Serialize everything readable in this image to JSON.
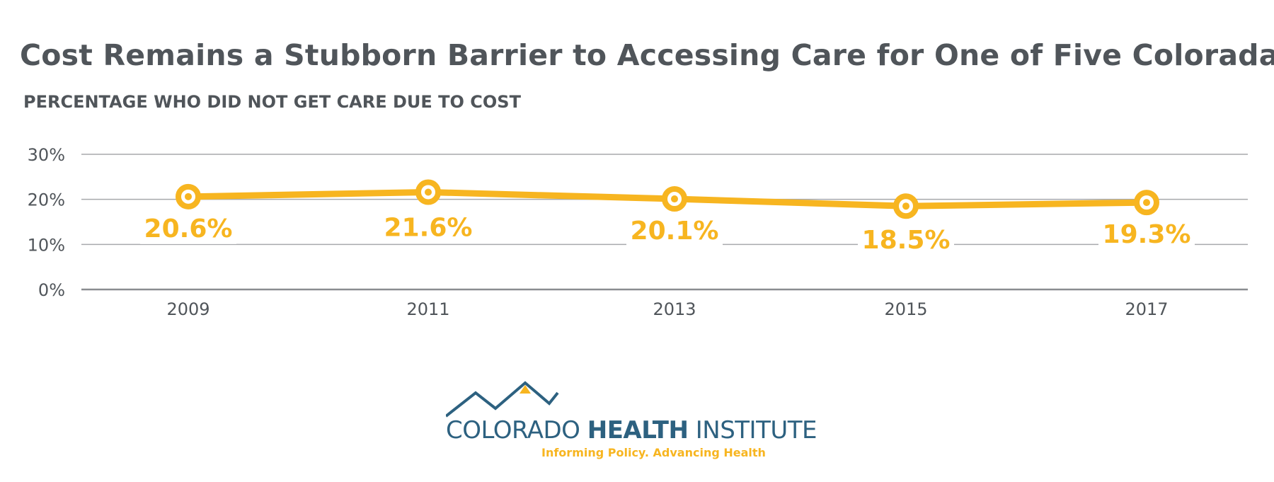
{
  "chart_data": {
    "type": "line",
    "title": "Cost Remains a Stubborn Barrier to Accessing Care for One of Five Coloradans",
    "subtitle": "PERCENTAGE WHO DID NOT GET CARE DUE TO COST",
    "x": [
      "2009",
      "2011",
      "2013",
      "2015",
      "2017"
    ],
    "series": [
      {
        "values": [
          20.6,
          21.6,
          20.1,
          18.5,
          19.3
        ],
        "labels": [
          "20.6%",
          "21.6%",
          "20.1%",
          "18.5%",
          "19.3%"
        ],
        "color": "#f7b520"
      }
    ],
    "y_ticks": [
      0,
      10,
      20,
      30
    ],
    "y_tick_labels": [
      "0%",
      "10%",
      "20%",
      "30%"
    ],
    "ylim": [
      0,
      30
    ],
    "grid": true,
    "legend": "none"
  },
  "branding": {
    "logo_name_light_1": "COLORADO ",
    "logo_name_bold": "HEALTH",
    "logo_name_light_2": " INSTITUTE",
    "tagline": "Informing Policy. Advancing Health",
    "primary_color": "#2d6180",
    "accent_color": "#f7b520"
  }
}
